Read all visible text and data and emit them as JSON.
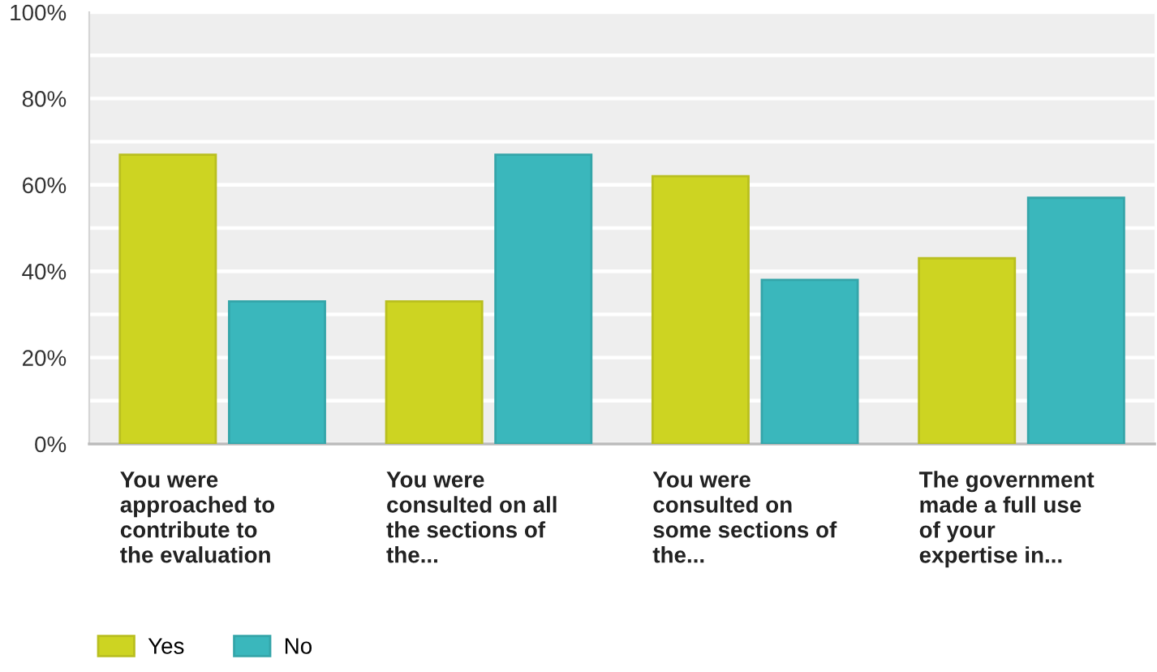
{
  "chart_data": {
    "type": "bar",
    "categories": [
      "You were\napproached to\ncontribute to\nthe evaluation",
      "You were\nconsulted on all\nthe sections of\nthe...",
      "You were\nconsulted on\nsome sections of\nthe...",
      "The government\nmade a full use\nof your\nexpertise in..."
    ],
    "series": [
      {
        "name": "Yes",
        "color": "#cdd422",
        "values": [
          67,
          33,
          62,
          43
        ]
      },
      {
        "name": "No",
        "color": "#3ab7bc",
        "values": [
          33,
          67,
          38,
          57
        ]
      }
    ],
    "ylim": [
      0,
      100
    ],
    "yticks": [
      {
        "value": 0,
        "label": "0%"
      },
      {
        "value": 10,
        "label": null
      },
      {
        "value": 20,
        "label": "20%"
      },
      {
        "value": 30,
        "label": null
      },
      {
        "value": 40,
        "label": "40%"
      },
      {
        "value": 50,
        "label": null
      },
      {
        "value": 60,
        "label": "60%"
      },
      {
        "value": 70,
        "label": null
      },
      {
        "value": 80,
        "label": "80%"
      },
      {
        "value": 90,
        "label": null
      },
      {
        "value": 100,
        "label": "100%"
      }
    ],
    "grid": "y",
    "legend": "bottom"
  }
}
